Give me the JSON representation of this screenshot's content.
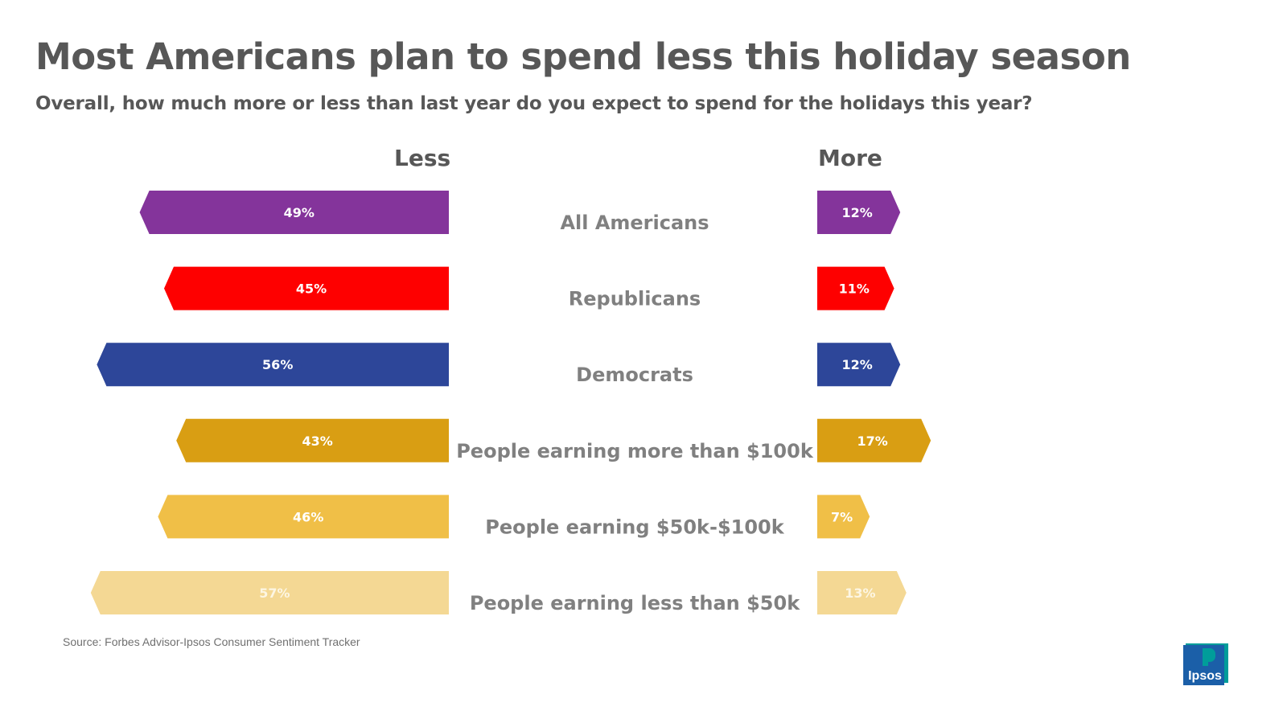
{
  "title": "Most Americans plan to spend less this holiday season",
  "subtitle": "Overall, how much more or less than last year do you expect to spend for the holidays this year?",
  "headers": {
    "less": "Less",
    "more": "More"
  },
  "source": "Source: Forbes Advisor-Ipsos Consumer Sentiment Tracker",
  "logo": {
    "text": "Ipsos",
    "colors": [
      "#009d9a",
      "#1b5fa8"
    ]
  },
  "chart_data": {
    "type": "bar",
    "title": "Most Americans plan to spend less this holiday season",
    "subtitle": "Overall, how much more or less than last year do you expect to spend for the holidays this year?",
    "categories": [
      "All Americans",
      "Republicans",
      "Democrats",
      "People earning more than $100k",
      "People earning $50k-$100k",
      "People earning less than $50k"
    ],
    "series": [
      {
        "name": "Less",
        "values": [
          49,
          45,
          56,
          43,
          46,
          57
        ],
        "labels": [
          "49%",
          "45%",
          "56%",
          "43%",
          "46%",
          "57%"
        ]
      },
      {
        "name": "More",
        "values": [
          12,
          11,
          12,
          17,
          7,
          13
        ],
        "labels": [
          "12%",
          "11%",
          "12%",
          "17%",
          "7%",
          "13%"
        ]
      }
    ],
    "colors": [
      "#84349b",
      "#fe0000",
      "#2d4699",
      "#d99e13",
      "#f0bf47",
      "#f4d894"
    ],
    "unit": "%"
  }
}
